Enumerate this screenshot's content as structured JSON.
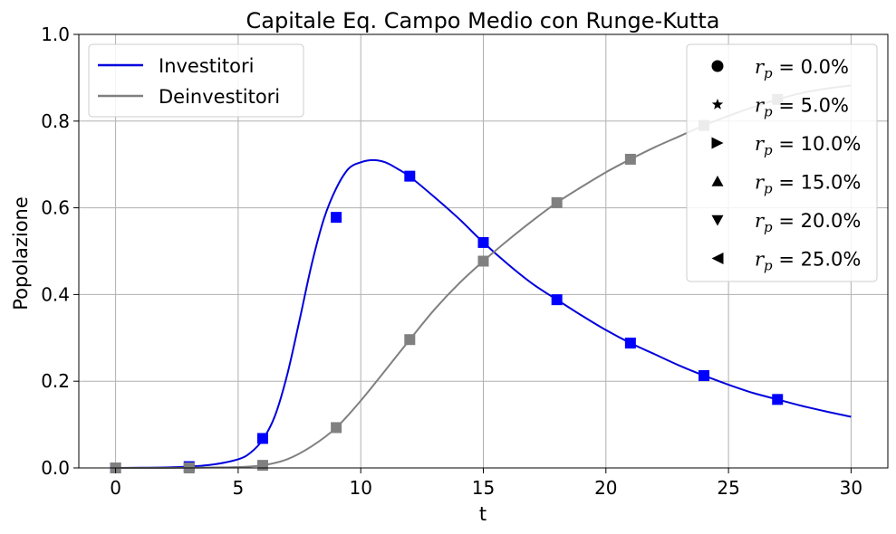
{
  "chart_data": {
    "type": "line",
    "title": "Capitale Eq. Campo Medio con Runge-Kutta",
    "xlabel": "t",
    "ylabel": "Popolazione",
    "xlim": [
      -1.5,
      31.5
    ],
    "ylim": [
      0,
      1.0
    ],
    "x_ticks": [
      0,
      5,
      10,
      15,
      20,
      25,
      30
    ],
    "x_tick_labels": [
      "0",
      "5",
      "10",
      "15",
      "20",
      "25",
      "30"
    ],
    "y_ticks": [
      0,
      0.2,
      0.4,
      0.6,
      0.8,
      1.0
    ],
    "y_tick_labels": [
      "0.0",
      "0.2",
      "0.4",
      "0.6",
      "0.8",
      "1.0"
    ],
    "grid": true,
    "series": [
      {
        "name": "Investitori",
        "color": "#0000dd",
        "marker": "square",
        "marker_color": "#0000ff",
        "x": [
          0,
          1,
          2,
          3,
          4,
          5,
          5.5,
          6,
          6.5,
          7,
          7.5,
          8,
          8.5,
          9,
          9.5,
          10,
          10.5,
          11,
          11.5,
          12,
          13,
          14,
          15,
          16,
          17,
          18,
          19,
          20,
          21,
          22,
          23,
          24,
          25,
          26,
          27,
          28,
          29,
          30
        ],
        "y": [
          0.0,
          0.0005,
          0.001,
          0.003,
          0.008,
          0.02,
          0.035,
          0.065,
          0.12,
          0.215,
          0.34,
          0.47,
          0.575,
          0.645,
          0.69,
          0.705,
          0.71,
          0.705,
          0.69,
          0.672,
          0.625,
          0.575,
          0.52,
          0.47,
          0.425,
          0.388,
          0.352,
          0.318,
          0.288,
          0.262,
          0.236,
          0.213,
          0.192,
          0.173,
          0.158,
          0.143,
          0.13,
          0.118
        ],
        "marker_x": [
          0,
          3,
          6,
          9,
          12,
          15,
          18,
          21,
          24,
          27
        ],
        "marker_y": [
          0.0,
          0.003,
          0.068,
          0.578,
          0.673,
          0.52,
          0.388,
          0.288,
          0.213,
          0.158
        ]
      },
      {
        "name": "Deinvestitori",
        "color": "#808080",
        "marker": "square",
        "marker_color": "#808080",
        "x": [
          0,
          2,
          4,
          5,
          6,
          7,
          8,
          9,
          10,
          11,
          12,
          13,
          14,
          15,
          16,
          17,
          18,
          19,
          20,
          21,
          22,
          23,
          24,
          25,
          26,
          27,
          28,
          29,
          30
        ],
        "y": [
          0.0,
          0.0,
          0.001,
          0.002,
          0.006,
          0.02,
          0.05,
          0.093,
          0.155,
          0.225,
          0.296,
          0.365,
          0.425,
          0.477,
          0.525,
          0.57,
          0.612,
          0.648,
          0.682,
          0.712,
          0.74,
          0.765,
          0.79,
          0.812,
          0.832,
          0.85,
          0.865,
          0.875,
          0.882
        ],
        "marker_x": [
          0,
          3,
          6,
          9,
          12,
          15,
          18,
          21,
          24,
          27
        ],
        "marker_y": [
          0.0,
          0.0,
          0.006,
          0.093,
          0.296,
          0.477,
          0.612,
          0.712,
          0.79,
          0.85
        ]
      }
    ],
    "legend_lines": {
      "placement": "upper-left",
      "entries": [
        "Investitori",
        "Deinvestitori"
      ]
    },
    "legend_markers": {
      "placement": "upper-right",
      "entries": [
        {
          "marker": "circle",
          "label_var": "r",
          "label_sub": "p",
          "label_eq": " = ",
          "label_value": "0.0%"
        },
        {
          "marker": "star",
          "label_var": "r",
          "label_sub": "p",
          "label_eq": " = ",
          "label_value": "5.0%"
        },
        {
          "marker": "triangle-right",
          "label_var": "r",
          "label_sub": "p",
          "label_eq": " = ",
          "label_value": "10.0%"
        },
        {
          "marker": "triangle-up",
          "label_var": "r",
          "label_sub": "p",
          "label_eq": " = ",
          "label_value": "15.0%"
        },
        {
          "marker": "triangle-down",
          "label_var": "r",
          "label_sub": "p",
          "label_eq": " = ",
          "label_value": "20.0%"
        },
        {
          "marker": "triangle-left",
          "label_var": "r",
          "label_sub": "p",
          "label_eq": " = ",
          "label_value": "25.0%"
        }
      ]
    }
  }
}
